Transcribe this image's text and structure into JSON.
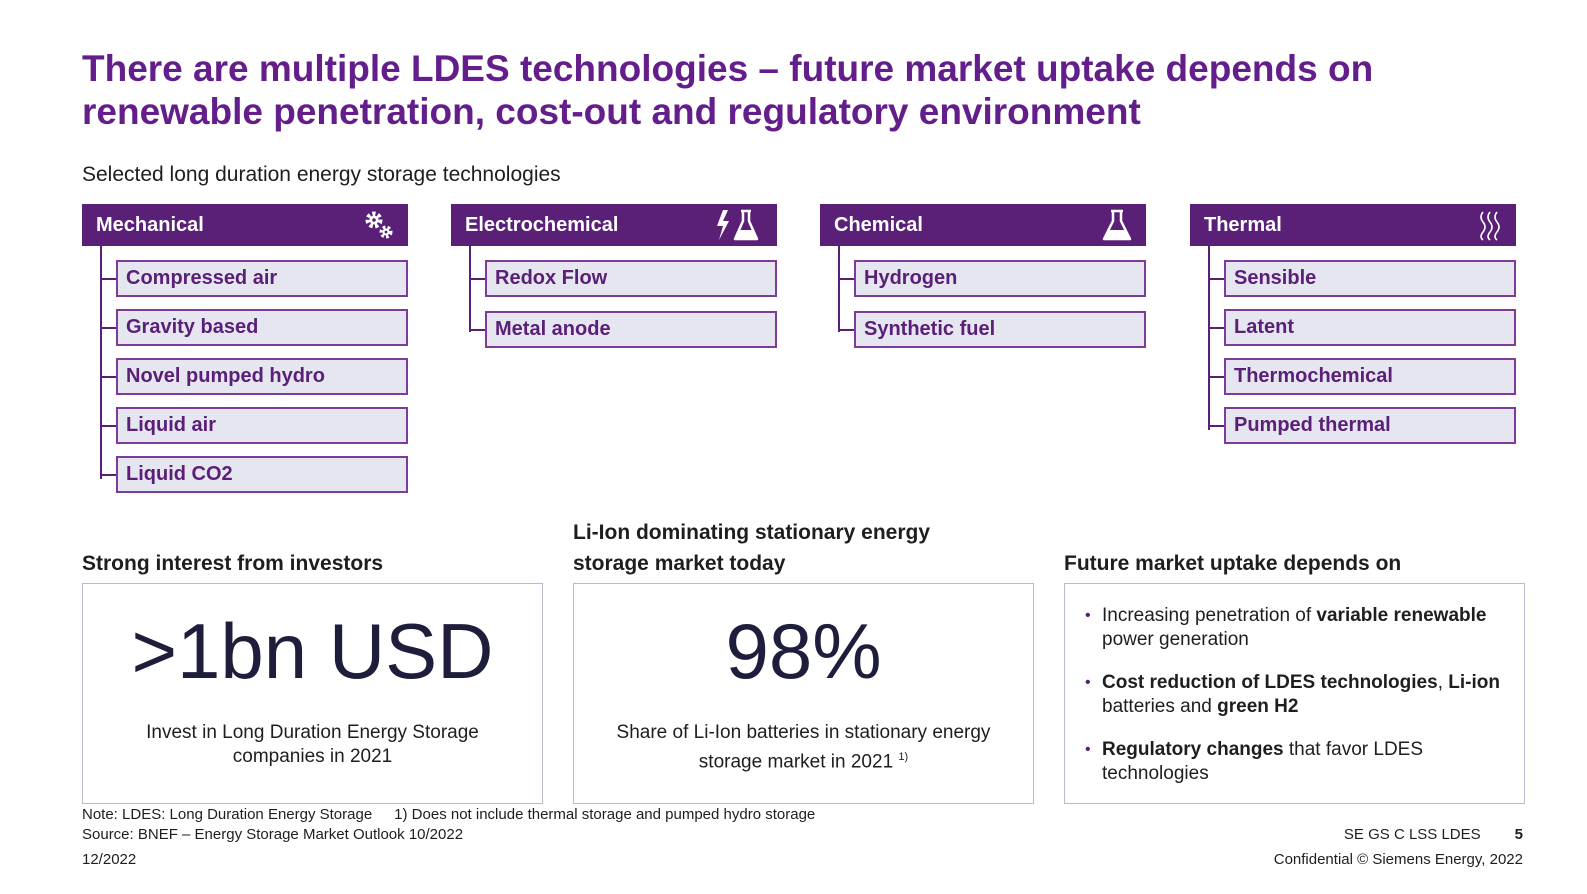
{
  "title": "There are multiple LDES technologies – future market uptake depends on renewable penetration, cost-out and regulatory environment",
  "subtitle": "Selected long duration energy storage technologies",
  "categories": [
    {
      "name": "Mechanical",
      "icon": "gears-icon",
      "items": [
        "Compressed air",
        "Gravity based",
        "Novel pumped hydro",
        "Liquid air",
        "Liquid CO2"
      ]
    },
    {
      "name": "Electrochemical",
      "icon": "lightning-flask-icon",
      "items": [
        "Redox Flow",
        "Metal anode"
      ]
    },
    {
      "name": "Chemical",
      "icon": "flask-icon",
      "items": [
        "Hydrogen",
        "Synthetic fuel"
      ]
    },
    {
      "name": "Thermal",
      "icon": "heat-waves-icon",
      "items": [
        "Sensible",
        "Latent",
        "Thermochemical",
        "Pumped thermal"
      ]
    }
  ],
  "investors": {
    "heading": "Strong interest from investors",
    "value": ">1bn USD",
    "caption": "Invest in Long Duration Energy Storage companies in 2021"
  },
  "liion": {
    "heading": "Li-Ion dominating stationary energy storage market today",
    "value": "98%",
    "caption": "Share of Li-Ion batteries in stationary energy storage market in 2021",
    "footnote_ref": "1)"
  },
  "uptake": {
    "heading": "Future market uptake depends on",
    "bullets": [
      {
        "parts": [
          {
            "text": "Increasing penetration of ",
            "bold": false
          },
          {
            "text": "variable renewable",
            "bold": true
          },
          {
            "text": " power generation",
            "bold": false
          }
        ]
      },
      {
        "parts": [
          {
            "text": "Cost reduction of LDES technologies",
            "bold": true
          },
          {
            "text": ", ",
            "bold": false
          },
          {
            "text": "Li-ion",
            "bold": true
          },
          {
            "text": " batteries and ",
            "bold": false
          },
          {
            "text": "green H2",
            "bold": true
          }
        ]
      },
      {
        "parts": [
          {
            "text": "Regulatory changes",
            "bold": true
          },
          {
            "text": " that favor LDES technologies",
            "bold": false
          }
        ]
      }
    ]
  },
  "footer": {
    "note": "Note: LDES: Long Duration Energy Storage",
    "footnote": "1) Does not include thermal storage and pumped hydro storage",
    "source": "Source: BNEF – Energy Storage Market Outlook 10/2022",
    "date": "12/2022",
    "code": "SE GS C LSS LDES",
    "page": "5",
    "confidential": "Confidential © Siemens Energy, 2022"
  },
  "colors": {
    "purple": "#641e8c",
    "header_bg": "#5a2078",
    "item_bg": "#e6e6f0"
  }
}
